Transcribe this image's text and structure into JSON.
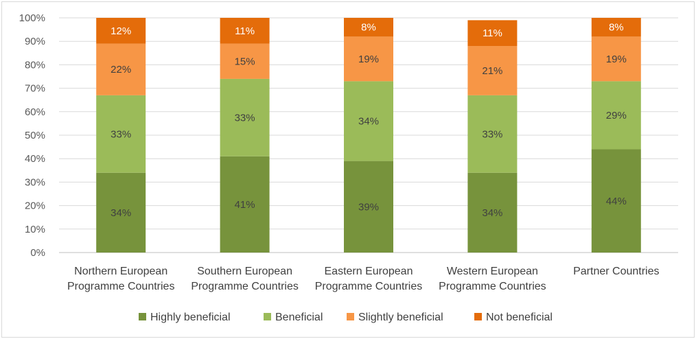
{
  "chart_data": {
    "type": "bar",
    "stacked": true,
    "title": "",
    "xlabel": "",
    "ylabel": "",
    "ylim": [
      0,
      100
    ],
    "y_ticks": [
      "0%",
      "10%",
      "20%",
      "30%",
      "40%",
      "50%",
      "60%",
      "70%",
      "80%",
      "90%",
      "100%"
    ],
    "grid": true,
    "legend_position": "bottom",
    "categories": [
      [
        "Northern European",
        "Programme Countries"
      ],
      [
        "Southern European",
        "Programme Countries"
      ],
      [
        "Eastern European",
        "Programme Countries"
      ],
      [
        "Western European",
        "Programme Countries"
      ],
      [
        "Partner Countries"
      ]
    ],
    "series": [
      {
        "name": "Highly beneficial",
        "color": "#77933c",
        "label_color": "#404040",
        "values": [
          34,
          41,
          39,
          34,
          44
        ],
        "labels": [
          "34%",
          "41%",
          "39%",
          "34%",
          "44%"
        ]
      },
      {
        "name": "Beneficial",
        "color": "#9bbb59",
        "label_color": "#404040",
        "values": [
          33,
          33,
          34,
          33,
          29
        ],
        "labels": [
          "33%",
          "33%",
          "34%",
          "33%",
          "29%"
        ]
      },
      {
        "name": "Slightly beneficial",
        "color": "#f79646",
        "label_color": "#404040",
        "values": [
          22,
          15,
          19,
          21,
          19
        ],
        "labels": [
          "22%",
          "15%",
          "19%",
          "21%",
          "19%"
        ]
      },
      {
        "name": "Not beneficial",
        "color": "#e46c0a",
        "label_color": "#ffffff",
        "values": [
          12,
          11,
          8,
          11,
          8
        ],
        "labels": [
          "12%",
          "11%",
          "8%",
          "11%",
          "8%"
        ]
      }
    ]
  }
}
